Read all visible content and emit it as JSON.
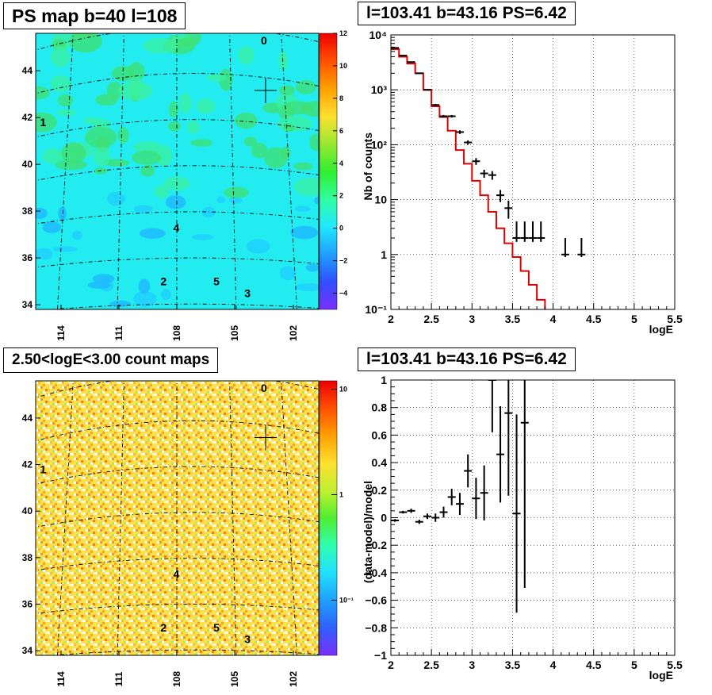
{
  "panels": {
    "ps_map": {
      "title": "PS map b=40 l=108",
      "x_ticks": [
        "114",
        "111",
        "108",
        "105",
        "102"
      ],
      "y_ticks": [
        "34",
        "36",
        "38",
        "40",
        "42",
        "44"
      ],
      "colorbar_ticks": [
        "12",
        "10",
        "8",
        "6",
        "4",
        "2",
        "0",
        "−2",
        "−4"
      ],
      "sources": [
        {
          "label": "0",
          "l": 103.5,
          "b": 45.3
        },
        {
          "label": "1",
          "l": 115.6,
          "b": 41.8
        },
        {
          "label": "2",
          "l": 109.0,
          "b": 35.0
        },
        {
          "label": "3",
          "l": 104.4,
          "b": 34.5
        },
        {
          "label": "4",
          "l": 108.3,
          "b": 37.3
        },
        {
          "label": "5",
          "l": 106.1,
          "b": 35.0
        }
      ]
    },
    "count_map": {
      "title": "2.50<logE<3.00 count maps",
      "x_ticks": [
        "114",
        "111",
        "108",
        "105",
        "102"
      ],
      "y_ticks": [
        "34",
        "36",
        "38",
        "40",
        "42",
        "44"
      ],
      "colorbar_ticks": [
        "10",
        "1",
        "10⁻¹"
      ]
    },
    "spectrum": {
      "title": "l=103.41 b=43.16 PS=6.42",
      "ylabel": "Nb of counts",
      "xlabel": "logE",
      "x_ticks": [
        "2",
        "2.5",
        "3",
        "3.5",
        "4",
        "4.5",
        "5",
        "5.5"
      ],
      "y_ticks": [
        "10⁻¹",
        "1",
        "10",
        "10²",
        "10³",
        "10⁴"
      ]
    },
    "residual": {
      "title": "l=103.41 b=43.16 PS=6.42",
      "ylabel": "(data-model)/model",
      "xlabel": "logE",
      "x_ticks": [
        "2",
        "2.5",
        "3",
        "3.5",
        "4",
        "4.5",
        "5",
        "5.5"
      ],
      "y_ticks": [
        "1",
        "0.8",
        "0.6",
        "0.4",
        "0.2",
        "0",
        "−0.2",
        "−0.4",
        "−0.6",
        "−0.8",
        "−1"
      ]
    }
  },
  "colors": {
    "model": "#e00000",
    "data": "#000000"
  },
  "chart_data": [
    {
      "type": "heatmap",
      "title": "PS map b=40 l=108",
      "xlabel": "",
      "ylabel": "",
      "xlim": [
        116,
        100.5
      ],
      "ylim": [
        33.8,
        45.6
      ],
      "zlim": [
        -5,
        12
      ],
      "marker": {
        "l": 103.41,
        "b": 43.16
      }
    },
    {
      "type": "heatmap",
      "title": "2.50<logE<3.00 count maps",
      "xlabel": "",
      "ylabel": "",
      "xlim": [
        116,
        100.5
      ],
      "ylim": [
        33.8,
        45.6
      ],
      "zscale": "log",
      "zlim": [
        0.03,
        12
      ],
      "marker": {
        "l": 103.41,
        "b": 43.16
      }
    },
    {
      "type": "line",
      "title": "l=103.41 b=43.16 PS=6.42",
      "xlabel": "logE",
      "ylabel": "Nb of counts",
      "xlim": [
        2,
        5.5
      ],
      "ylim": [
        0.1,
        10000
      ],
      "yscale": "log",
      "grid": true,
      "series": [
        {
          "name": "model",
          "step_x": [
            2.0,
            2.1,
            2.2,
            2.3,
            2.4,
            2.5,
            2.6,
            2.7,
            2.8,
            2.9,
            3.0,
            3.1,
            3.2,
            3.3,
            3.4,
            3.5,
            3.6,
            3.7,
            3.8,
            3.9,
            4.0,
            5.5
          ],
          "values": [
            5500,
            4000,
            3000,
            2000,
            1000,
            500,
            320,
            180,
            80,
            45,
            22,
            12,
            6,
            3,
            1.6,
            0.9,
            0.5,
            0.28,
            0.15,
            0.095,
            0.095
          ]
        },
        {
          "name": "data",
          "x": [
            2.05,
            2.15,
            2.25,
            2.35,
            2.45,
            2.55,
            2.65,
            2.75,
            2.85,
            2.95,
            3.05,
            3.15,
            3.25,
            3.35,
            3.45,
            3.55,
            3.65,
            3.75,
            3.85,
            4.15,
            4.35
          ],
          "y": [
            5800,
            4200,
            3200,
            2000,
            1000,
            530,
            330,
            330,
            170,
            110,
            50,
            30,
            28,
            12,
            7,
            2,
            2,
            2,
            2,
            1,
            1
          ],
          "yerr_low": [
            5700,
            4100,
            3140,
            1955,
            970,
            507,
            312,
            312,
            157,
            100,
            43,
            25,
            23,
            9,
            4.5,
            1.7,
            1.7,
            1.7,
            1.7,
            0.9,
            0.9
          ],
          "yerr_high": [
            5880,
            4270,
            3260,
            2045,
            1030,
            553,
            348,
            348,
            183,
            120,
            57,
            35,
            33,
            15,
            9.6,
            4,
            4,
            4,
            4,
            2,
            2
          ]
        }
      ]
    },
    {
      "type": "scatter",
      "title": "l=103.41 b=43.16 PS=6.42",
      "xlabel": "logE",
      "ylabel": "(data-model)/model",
      "xlim": [
        2,
        5.5
      ],
      "ylim": [
        -1,
        1
      ],
      "grid": true,
      "series": [
        {
          "name": "residual",
          "x": [
            2.05,
            2.15,
            2.25,
            2.35,
            2.45,
            2.55,
            2.65,
            2.75,
            2.85,
            2.95,
            3.05,
            3.15,
            3.25,
            3.35,
            3.45,
            3.55,
            3.65
          ],
          "y": [
            -0.02,
            0.04,
            0.05,
            -0.03,
            0.01,
            0.0,
            0.04,
            0.15,
            0.1,
            0.34,
            0.14,
            0.18,
            1.0,
            0.46,
            0.76,
            0.03,
            0.69
          ],
          "err": [
            0.01,
            0.01,
            0.015,
            0.015,
            0.02,
            0.03,
            0.04,
            0.06,
            0.08,
            0.12,
            0.15,
            0.2,
            0.38,
            0.35,
            0.6,
            0.72,
            1.2
          ]
        }
      ]
    }
  ]
}
